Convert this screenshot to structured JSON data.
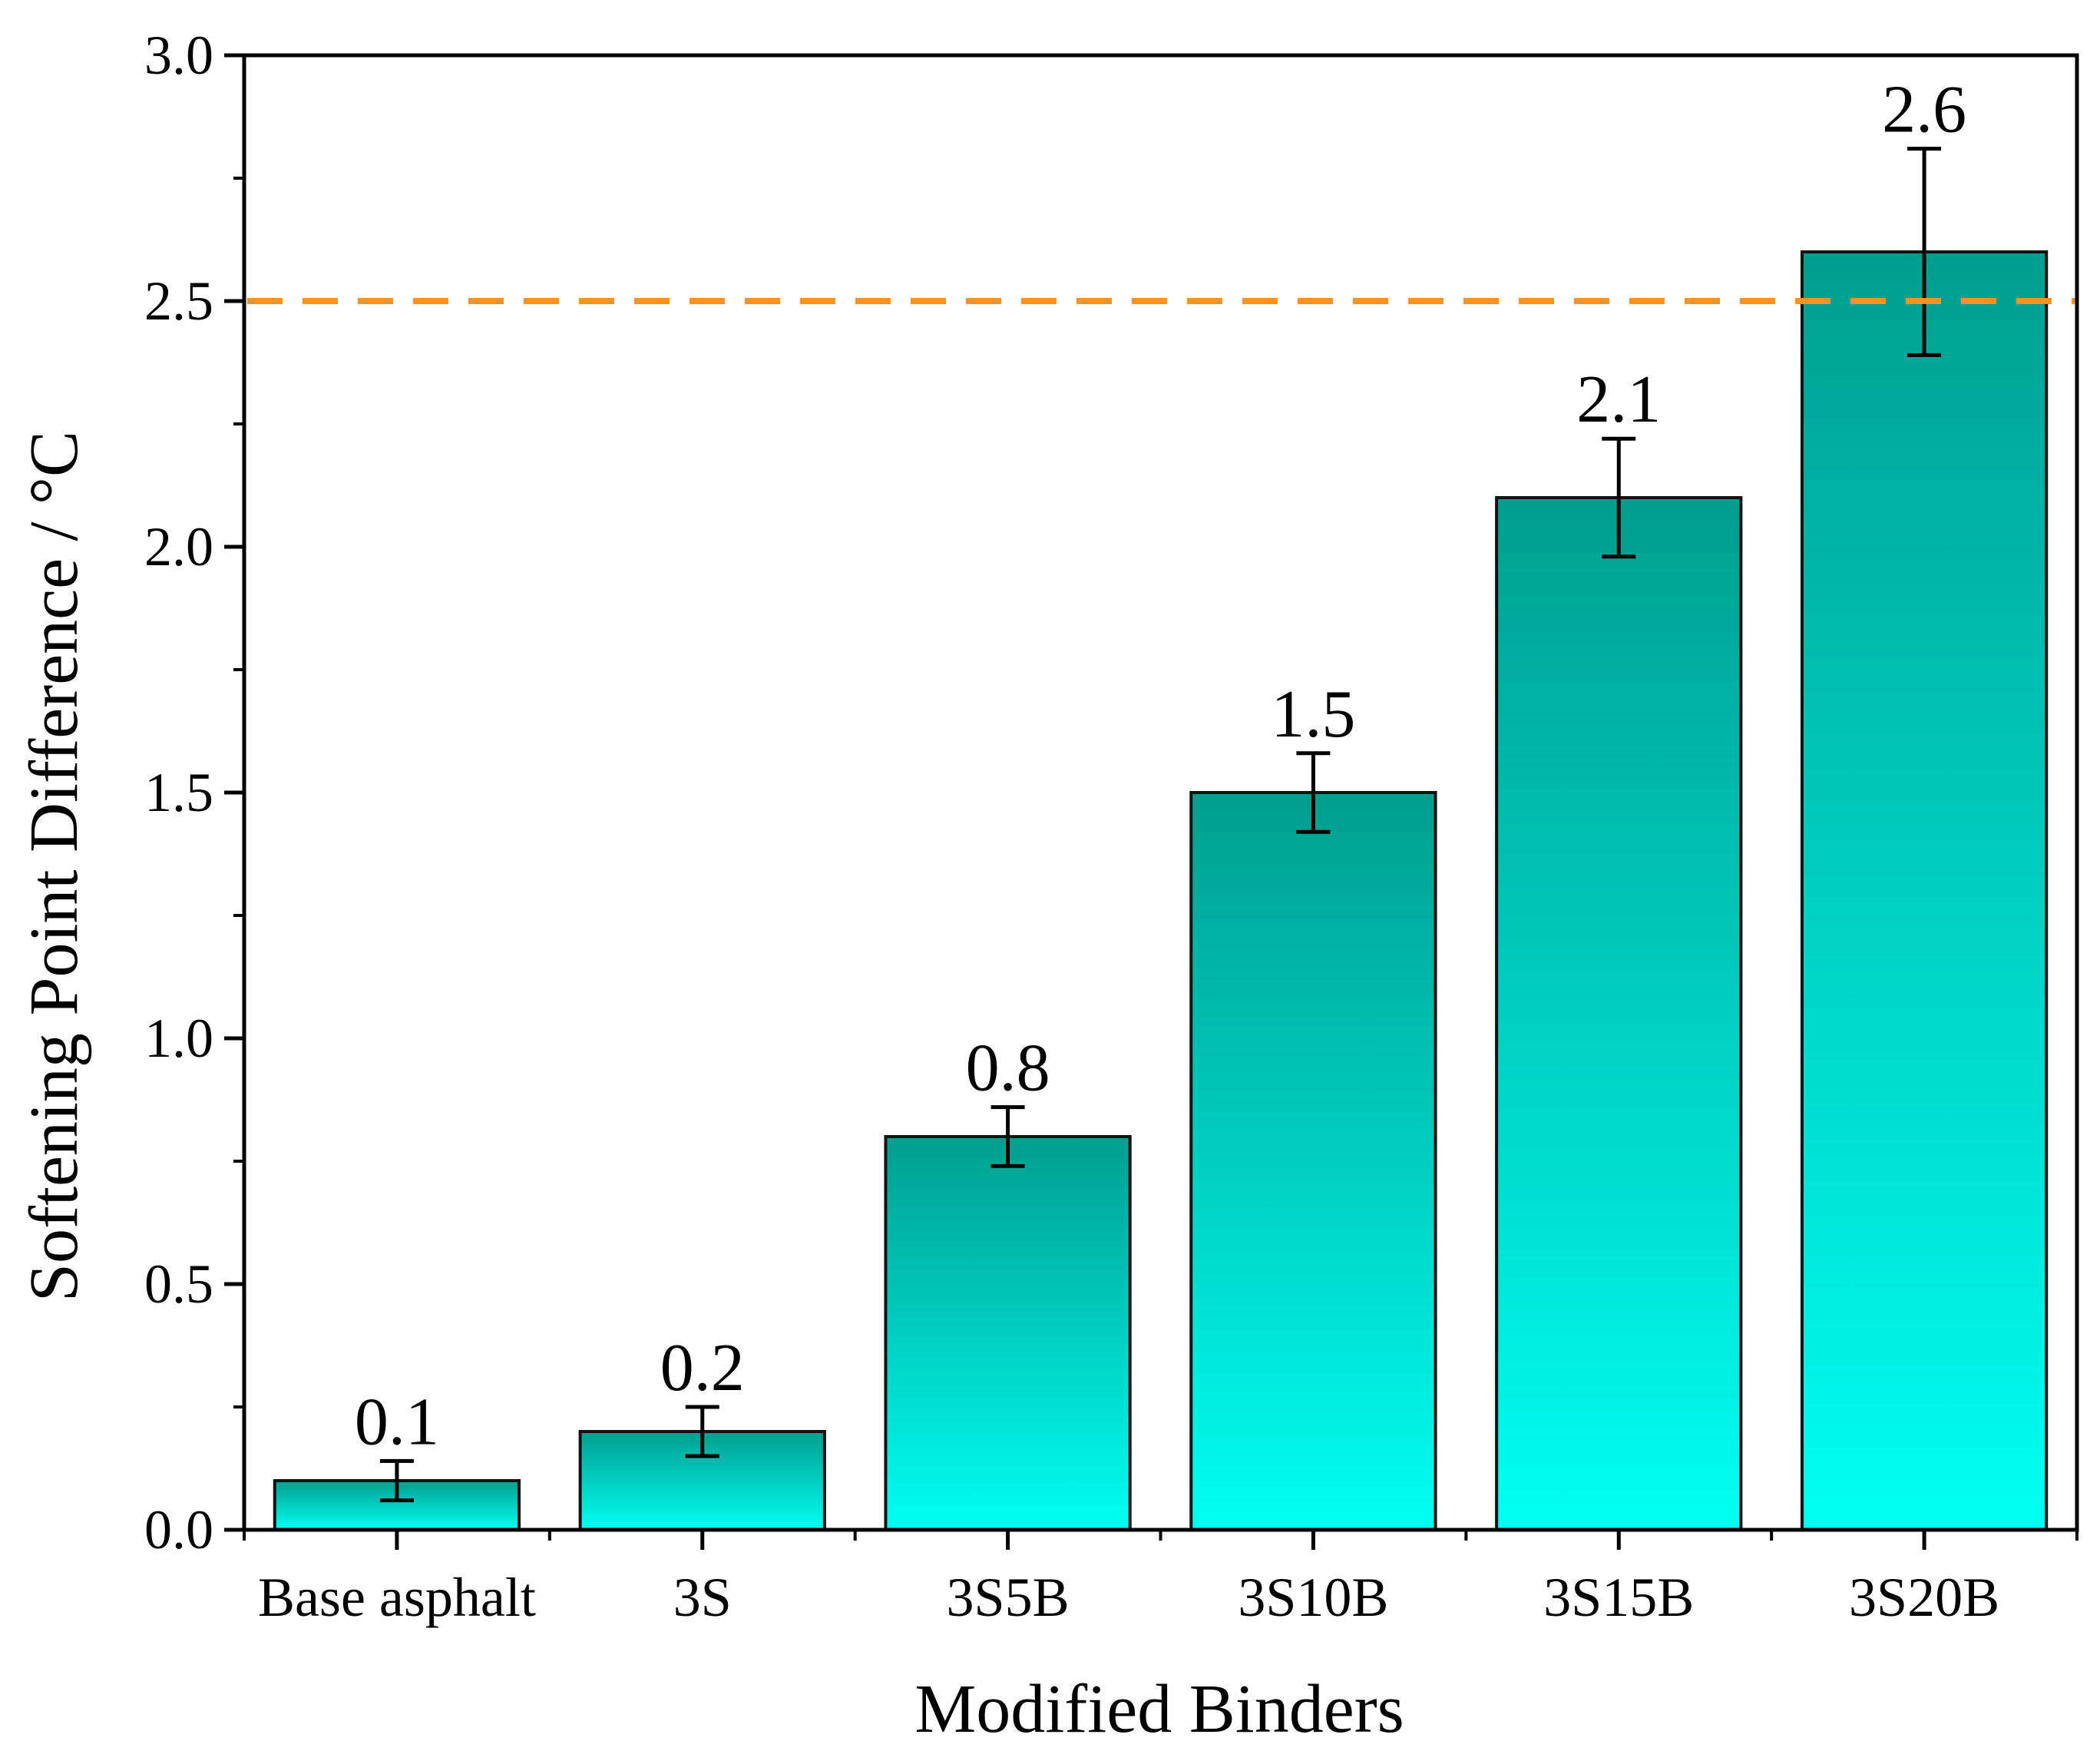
{
  "chart_data": {
    "type": "bar",
    "categories": [
      "Base asphalt",
      "3S",
      "3S5B",
      "3S10B",
      "3S15B",
      "3S20B"
    ],
    "values": [
      0.1,
      0.2,
      0.8,
      1.5,
      2.1,
      2.6
    ],
    "errors": [
      0.04,
      0.05,
      0.06,
      0.08,
      0.12,
      0.21
    ],
    "data_labels": [
      "0.1",
      "0.2",
      "0.8",
      "1.5",
      "2.1",
      "2.6"
    ],
    "xlabel": "Modified Binders",
    "ylabel": "Softening Point Difference / °C",
    "ylim": [
      0,
      3.0
    ],
    "yticks": [
      "0.0",
      "0.5",
      "1.0",
      "1.5",
      "2.0",
      "2.5",
      "3.0"
    ],
    "reference_line": {
      "value": 2.5,
      "style": "dashed"
    },
    "grid": false,
    "colors": {
      "bar_top": "#009e8e",
      "bar_bottom": "#00fff2",
      "bar_stroke": "#111111",
      "reference_line": "#f7931e",
      "axis": "#000000"
    }
  }
}
